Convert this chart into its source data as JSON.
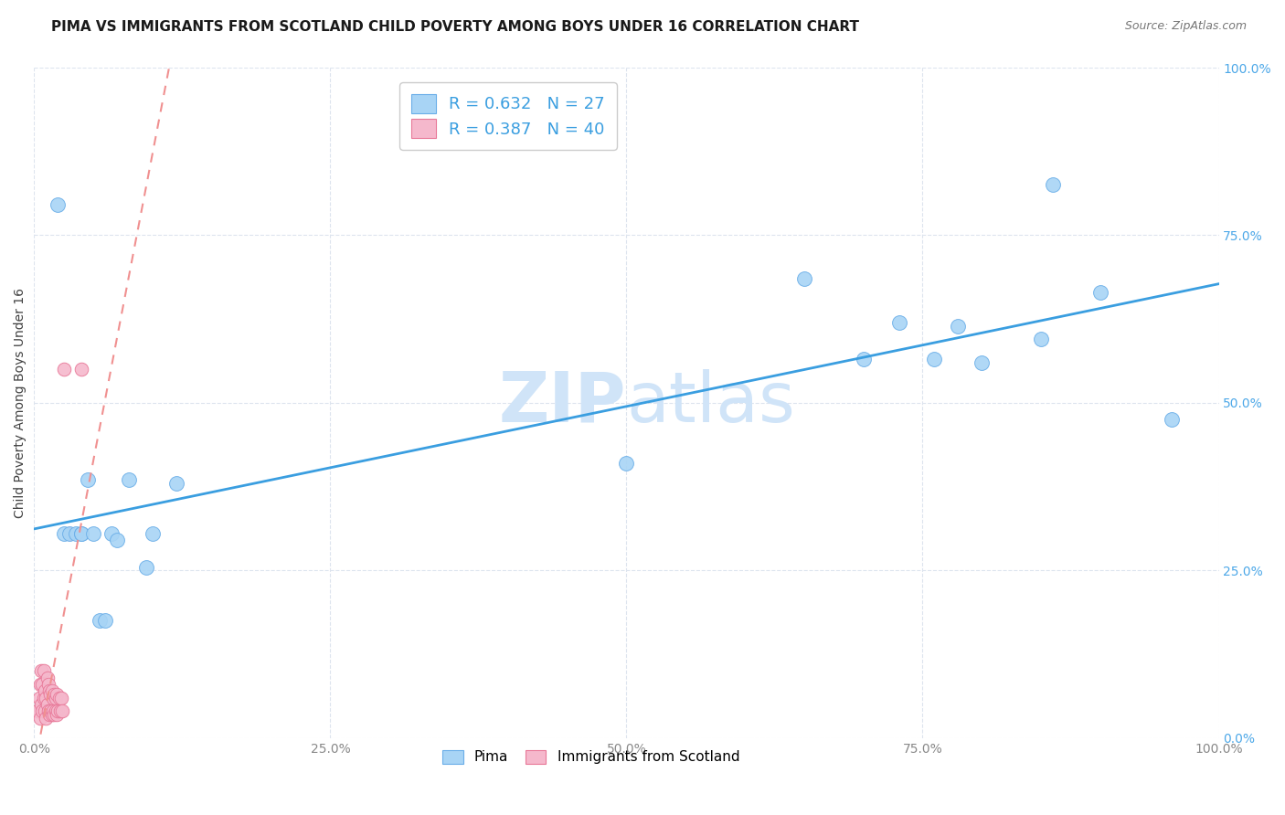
{
  "title": "PIMA VS IMMIGRANTS FROM SCOTLAND CHILD POVERTY AMONG BOYS UNDER 16 CORRELATION CHART",
  "source": "Source: ZipAtlas.com",
  "ylabel": "Child Poverty Among Boys Under 16",
  "xlim": [
    0.0,
    1.0
  ],
  "ylim": [
    0.0,
    1.0
  ],
  "xticks": [
    0.0,
    0.25,
    0.5,
    0.75,
    1.0
  ],
  "yticks": [
    0.0,
    0.25,
    0.5,
    0.75,
    1.0
  ],
  "pima_R": 0.632,
  "pima_N": 27,
  "scotland_R": 0.387,
  "scotland_N": 40,
  "pima_color": "#a8d4f5",
  "pima_edge_color": "#6aaee8",
  "scotland_color": "#f5b8cc",
  "scotland_edge_color": "#e87898",
  "trendline_pima_color": "#3a9ee0",
  "trendline_scotland_color": "#f09090",
  "watermark_color": "#d0e4f8",
  "legend_fontsize": 13,
  "title_fontsize": 11,
  "axis_label_fontsize": 10,
  "tick_fontsize": 10,
  "right_tick_color": "#4da8e8",
  "pima_x": [
    0.02,
    0.025,
    0.03,
    0.035,
    0.04,
    0.04,
    0.045,
    0.05,
    0.055,
    0.06,
    0.065,
    0.07,
    0.08,
    0.095,
    0.1,
    0.12,
    0.5,
    0.65,
    0.7,
    0.73,
    0.76,
    0.78,
    0.8,
    0.85,
    0.86,
    0.9,
    0.96
  ],
  "pima_y": [
    0.795,
    0.305,
    0.305,
    0.305,
    0.305,
    0.305,
    0.385,
    0.305,
    0.175,
    0.175,
    0.305,
    0.295,
    0.385,
    0.255,
    0.305,
    0.38,
    0.41,
    0.685,
    0.565,
    0.62,
    0.565,
    0.615,
    0.56,
    0.595,
    0.825,
    0.665,
    0.475
  ],
  "scotland_x": [
    0.003,
    0.004,
    0.005,
    0.005,
    0.006,
    0.006,
    0.007,
    0.007,
    0.008,
    0.008,
    0.009,
    0.009,
    0.01,
    0.01,
    0.011,
    0.011,
    0.012,
    0.012,
    0.013,
    0.013,
    0.014,
    0.014,
    0.015,
    0.015,
    0.016,
    0.016,
    0.017,
    0.017,
    0.018,
    0.018,
    0.019,
    0.019,
    0.02,
    0.021,
    0.022,
    0.023,
    0.024,
    0.025,
    0.03,
    0.04
  ],
  "scotland_y": [
    0.04,
    0.06,
    0.03,
    0.08,
    0.05,
    0.1,
    0.04,
    0.08,
    0.06,
    0.1,
    0.04,
    0.07,
    0.03,
    0.06,
    0.05,
    0.09,
    0.04,
    0.08,
    0.035,
    0.07,
    0.04,
    0.065,
    0.035,
    0.07,
    0.04,
    0.06,
    0.035,
    0.065,
    0.04,
    0.06,
    0.035,
    0.065,
    0.04,
    0.06,
    0.04,
    0.06,
    0.04,
    0.55,
    0.305,
    0.55
  ],
  "bg_color": "#ffffff",
  "grid_color": "#dde4ee"
}
